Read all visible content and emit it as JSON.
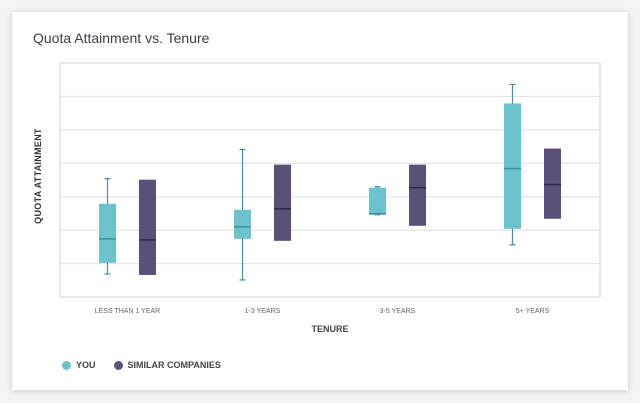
{
  "chart_data": {
    "type": "boxplot",
    "title": "Quota Attainment vs. Tenure",
    "xlabel": "TENURE",
    "ylabel": "QUOTA ATTAINMENT",
    "ylim": [
      0,
      7
    ],
    "grid": true,
    "legend_position": "bottom-left",
    "categories": [
      "LESS THAN 1 YEAR",
      "1-3 YEARS",
      "3-5 YEARS",
      "5+ YEARS"
    ],
    "series": [
      {
        "name": "YOU",
        "color": "#6cc3cc",
        "whiskers": true,
        "boxes": [
          {
            "min": 0.69,
            "q1": 1.02,
            "median": 1.74,
            "q3": 2.79,
            "max": 3.54
          },
          {
            "min": 0.51,
            "q1": 1.74,
            "median": 2.1,
            "q3": 2.61,
            "max": 4.41
          },
          {
            "min": 2.46,
            "q1": 2.46,
            "median": 2.49,
            "q3": 3.27,
            "max": 3.3
          },
          {
            "min": 1.56,
            "q1": 2.04,
            "median": 3.84,
            "q3": 5.79,
            "max": 6.36
          }
        ]
      },
      {
        "name": "SIMILAR COMPANIES",
        "color": "#5a5078",
        "whiskers": false,
        "boxes": [
          {
            "min": 0.66,
            "q1": 0.66,
            "median": 1.71,
            "q3": 3.51,
            "max": 3.51
          },
          {
            "min": 1.68,
            "q1": 1.68,
            "median": 2.64,
            "q3": 3.96,
            "max": 3.96
          },
          {
            "min": 2.13,
            "q1": 2.13,
            "median": 3.27,
            "q3": 3.96,
            "max": 3.96
          },
          {
            "min": 2.34,
            "q1": 2.34,
            "median": 3.36,
            "q3": 4.44,
            "max": 4.44
          }
        ]
      }
    ]
  }
}
